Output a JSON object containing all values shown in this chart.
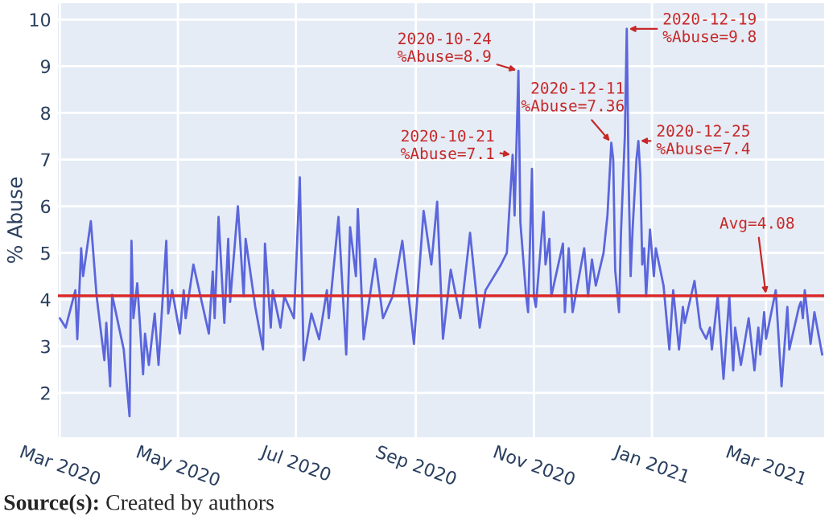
{
  "chart_data": {
    "type": "line",
    "ylabel": "% Abuse",
    "x": [
      "2020-03-01",
      "2020-03-04",
      "2020-03-09",
      "2020-03-10",
      "2020-03-12",
      "2020-03-13",
      "2020-03-17",
      "2020-03-20",
      "2020-03-24",
      "2020-03-25",
      "2020-03-27",
      "2020-03-28",
      "2020-04-03",
      "2020-04-06",
      "2020-04-07",
      "2020-04-08",
      "2020-04-10",
      "2020-04-13",
      "2020-04-14",
      "2020-04-16",
      "2020-04-19",
      "2020-04-21",
      "2020-04-25",
      "2020-04-26",
      "2020-04-28",
      "2020-05-02",
      "2020-05-04",
      "2020-05-05",
      "2020-05-09",
      "2020-05-17",
      "2020-05-19",
      "2020-05-20",
      "2020-05-22",
      "2020-05-25",
      "2020-05-27",
      "2020-05-28",
      "2020-06-01",
      "2020-06-04",
      "2020-06-05",
      "2020-06-10",
      "2020-06-14",
      "2020-06-15",
      "2020-06-18",
      "2020-06-19",
      "2020-06-23",
      "2020-06-25",
      "2020-06-30",
      "2020-07-03",
      "2020-07-05",
      "2020-07-09",
      "2020-07-13",
      "2020-07-17",
      "2020-07-18",
      "2020-07-23",
      "2020-07-27",
      "2020-07-29",
      "2020-08-01",
      "2020-08-02",
      "2020-08-05",
      "2020-08-09",
      "2020-08-11",
      "2020-08-15",
      "2020-08-20",
      "2020-08-25",
      "2020-08-31",
      "2020-09-05",
      "2020-09-09",
      "2020-09-12",
      "2020-09-15",
      "2020-09-19",
      "2020-09-24",
      "2020-09-29",
      "2020-10-04",
      "2020-10-07",
      "2020-10-15",
      "2020-10-18",
      "2020-10-21",
      "2020-10-22",
      "2020-10-24",
      "2020-10-25",
      "2020-10-28",
      "2020-10-29",
      "2020-10-31",
      "2020-11-01",
      "2020-11-02",
      "2020-11-06",
      "2020-11-07",
      "2020-11-09",
      "2020-11-10",
      "2020-11-16",
      "2020-11-17",
      "2020-11-19",
      "2020-11-21",
      "2020-11-27",
      "2020-11-29",
      "2020-12-01",
      "2020-12-03",
      "2020-12-07",
      "2020-12-09",
      "2020-12-11",
      "2020-12-12",
      "2020-12-13",
      "2020-12-15",
      "2020-12-16",
      "2020-12-18",
      "2020-12-19",
      "2020-12-20",
      "2020-12-21",
      "2020-12-22",
      "2020-12-24",
      "2020-12-25",
      "2020-12-26",
      "2020-12-27",
      "2020-12-28",
      "2020-12-29",
      "2020-12-31",
      "2021-01-02",
      "2021-01-03",
      "2021-01-07",
      "2021-01-10",
      "2021-01-12",
      "2021-01-15",
      "2021-01-17",
      "2021-01-18",
      "2021-01-23",
      "2021-01-26",
      "2021-01-29",
      "2021-01-31",
      "2021-02-01",
      "2021-02-04",
      "2021-02-07",
      "2021-02-10",
      "2021-02-12",
      "2021-02-13",
      "2021-02-16",
      "2021-02-20",
      "2021-02-23",
      "2021-02-25",
      "2021-02-26",
      "2021-02-28",
      "2021-03-01",
      "2021-03-06",
      "2021-03-09",
      "2021-03-12",
      "2021-03-13",
      "2021-03-18",
      "2021-03-19",
      "2021-03-20",
      "2021-03-21",
      "2021-03-24",
      "2021-03-26",
      "2021-03-30"
    ],
    "series": [
      {
        "color": "#5b66dc",
        "values": [
          3.6,
          3.4,
          4.2,
          3.15,
          5.1,
          4.5,
          5.68,
          4.07,
          2.7,
          3.5,
          2.14,
          4.1,
          2.93,
          1.5,
          5.26,
          3.6,
          4.35,
          2.4,
          3.27,
          2.6,
          3.7,
          2.6,
          5.26,
          3.7,
          4.2,
          3.27,
          4.2,
          3.6,
          4.75,
          3.27,
          4.6,
          3.6,
          5.77,
          3.5,
          5.3,
          3.95,
          6.0,
          4.07,
          5.3,
          3.84,
          2.93,
          5.2,
          3.4,
          4.2,
          3.4,
          4.07,
          3.6,
          6.62,
          2.7,
          3.7,
          3.15,
          4.2,
          3.6,
          5.77,
          2.82,
          5.55,
          4.5,
          5.94,
          3.15,
          4.3,
          4.87,
          3.6,
          4.07,
          5.26,
          3.05,
          5.9,
          4.75,
          6.1,
          3.16,
          4.64,
          3.6,
          5.43,
          3.4,
          4.2,
          4.75,
          5.0,
          7.1,
          5.8,
          8.9,
          5.66,
          4.07,
          3.73,
          6.8,
          4.07,
          3.84,
          5.88,
          4.75,
          5.3,
          4.07,
          5.2,
          3.73,
          5.1,
          3.73,
          5.1,
          4.07,
          4.86,
          4.3,
          5.0,
          5.8,
          7.36,
          7.0,
          4.64,
          3.73,
          5.43,
          7.5,
          9.8,
          6.5,
          4.5,
          5.5,
          7.0,
          7.4,
          6.7,
          4.75,
          5.1,
          4.07,
          5.5,
          4.5,
          5.1,
          4.3,
          2.93,
          4.2,
          2.93,
          3.84,
          3.5,
          4.4,
          3.4,
          3.16,
          3.4,
          2.93,
          4.07,
          2.3,
          4.07,
          2.48,
          3.4,
          2.6,
          3.6,
          2.48,
          3.4,
          2.82,
          3.73,
          3.16,
          4.2,
          2.14,
          3.84,
          2.93,
          3.84,
          3.95,
          3.6,
          4.2,
          3.05,
          3.73,
          2.82
        ]
      }
    ],
    "xlim": [
      "2020-02-29",
      "2021-03-31"
    ],
    "xticks": [
      {
        "value": "2020-03-01",
        "label": "Mar 2020"
      },
      {
        "value": "2020-05-01",
        "label": "May 2020"
      },
      {
        "value": "2020-07-01",
        "label": "Jul 2020"
      },
      {
        "value": "2020-09-01",
        "label": "Sep 2020"
      },
      {
        "value": "2020-11-01",
        "label": "Nov 2020"
      },
      {
        "value": "2021-01-01",
        "label": "Jan 2021"
      },
      {
        "value": "2021-03-01",
        "label": "Mar 2021"
      }
    ],
    "ylim": [
      1.05,
      10.35
    ],
    "yticks": [
      2,
      3,
      4,
      5,
      6,
      7,
      8,
      9,
      10
    ],
    "grid": true,
    "ref_lines": [
      {
        "axis": "y",
        "value": 4.08,
        "color": "#dc2a2a"
      }
    ],
    "annotations": [
      {
        "text": "2020-10-21\n%Abuse=7.1",
        "x": "2020-10-21",
        "y": 7.1
      },
      {
        "text": "2020-10-24\n%Abuse=8.9",
        "x": "2020-10-24",
        "y": 8.9
      },
      {
        "text": "2020-12-11\n%Abuse=7.36",
        "x": "2020-12-11",
        "y": 7.36
      },
      {
        "text": "2020-12-19\n%Abuse=9.8",
        "x": "2020-12-19",
        "y": 9.8
      },
      {
        "text": "2020-12-25\n%Abuse=7.4",
        "x": "2020-12-25",
        "y": 7.4
      },
      {
        "text": "Avg=4.08",
        "x": "2021-03-01",
        "y": 4.08
      },
      "Source(s): Created by authors"
    ]
  }
}
